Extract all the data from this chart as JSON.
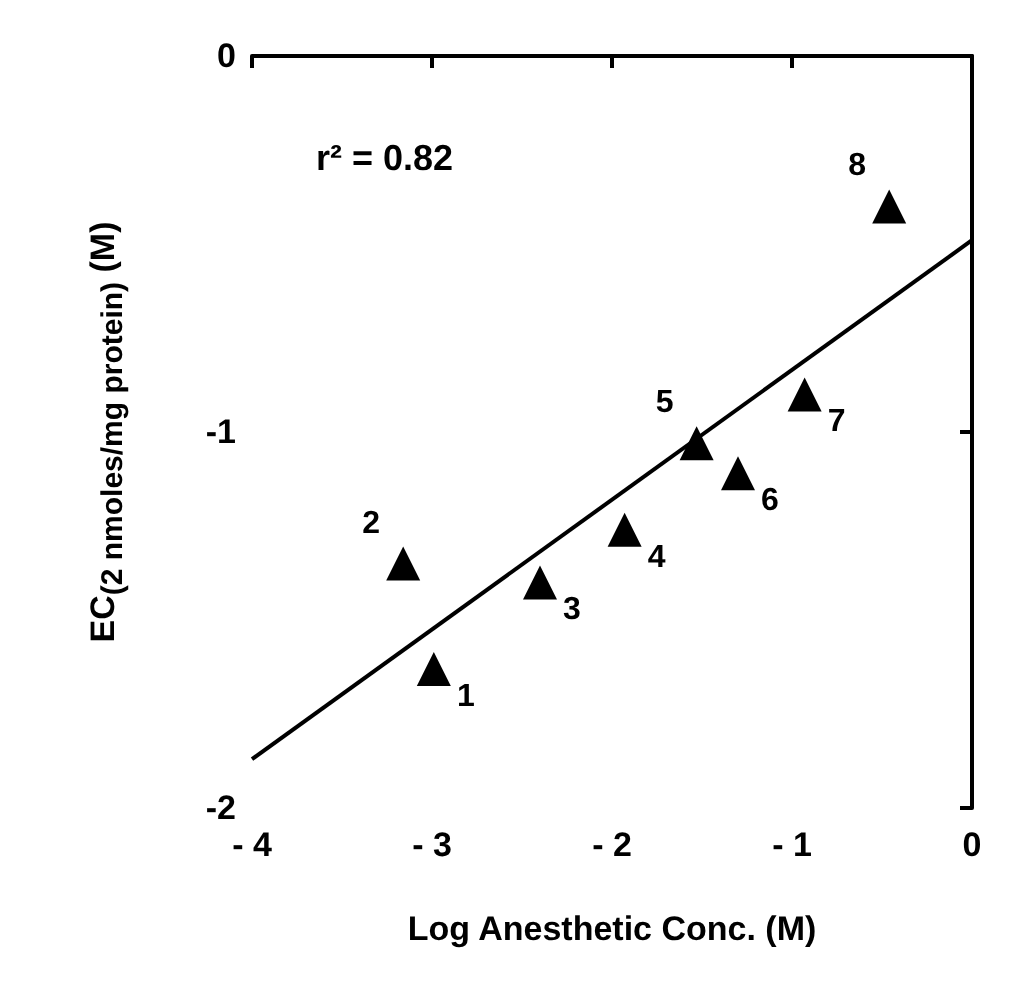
{
  "chart_data": {
    "type": "scatter",
    "xlabel": "Log Anesthetic Conc. (M)",
    "ylabel": "EC$_{(2 nmoles/mg protein)}$ (M)",
    "annotations": [
      "r² = 0.82",
      {
        "text": "1",
        "x": -2.99,
        "y": -1.63
      },
      {
        "text": "2",
        "x": -3.16,
        "y": -1.35
      },
      {
        "text": "3",
        "x": -2.4,
        "y": -1.4
      },
      {
        "text": "4",
        "x": -1.93,
        "y": -1.26
      },
      {
        "text": "5",
        "x": -1.53,
        "y": -1.03
      },
      {
        "text": "6",
        "x": -1.3,
        "y": -1.11
      },
      {
        "text": "7",
        "x": -0.93,
        "y": -0.9
      },
      {
        "text": "8",
        "x": -0.46,
        "y": -0.4
      }
    ],
    "xlim": [
      -4,
      0
    ],
    "xticks": [
      {
        "value": -4,
        "label": "- 4"
      },
      {
        "value": -3,
        "label": "- 3"
      },
      {
        "value": -2,
        "label": "- 2"
      },
      {
        "value": -1,
        "label": "- 1"
      },
      0
    ],
    "ylim": [
      -2,
      0
    ],
    "yticks": [
      -2,
      -1,
      0
    ],
    "grid": false,
    "marker": "triangle",
    "series": [
      {
        "color": "#000000",
        "x": [
          -2.99,
          -3.16,
          -2.4,
          -1.93,
          -1.53,
          -1.3,
          -0.93,
          -0.46
        ],
        "values": [
          -1.63,
          -1.35,
          -1.4,
          -1.26,
          -1.03,
          -1.11,
          -0.9,
          -0.4
        ]
      },
      {
        "type": "line",
        "color": "#000000",
        "marker": "none",
        "line_style": "solid",
        "x": [
          -4,
          0
        ],
        "values": [
          -1.87,
          -0.49
        ]
      }
    ]
  }
}
